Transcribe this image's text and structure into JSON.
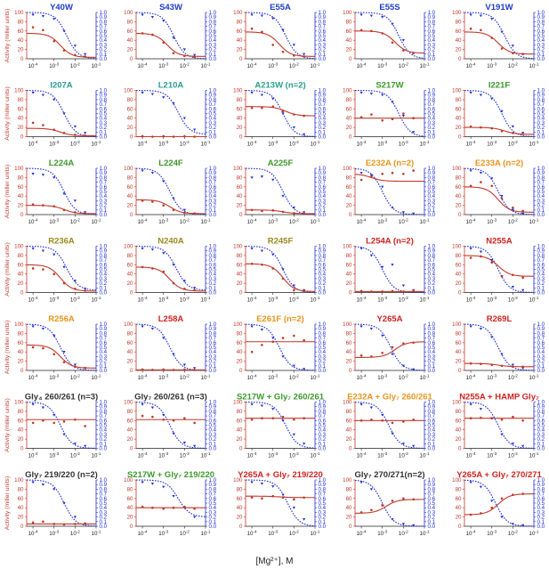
{
  "colors": {
    "activity": "#c0392b",
    "crosslink": "#1f2fd0",
    "title_blue": "#1f3cc8",
    "title_teal": "#2a9d8f",
    "title_green": "#3c9a2c",
    "title_olive": "#9a8a1e",
    "title_orange": "#e8951c",
    "title_red": "#d0231f",
    "title_dark": "#333333"
  },
  "x_axis_label": "[Mg²⁺], M",
  "left_axis_label": "Activity (miller units)",
  "right_axis_label": "F(crosslinking)",
  "left_ticks": [
    "0",
    "20",
    "40",
    "60",
    "80",
    "100"
  ],
  "right_ticks": [
    "0.0",
    "0.1",
    "0.2",
    "0.3",
    "0.4",
    "0.5",
    "0.6",
    "0.7",
    "0.8",
    "0.9",
    "1.0"
  ],
  "x_ticks": [
    {
      "base": "10",
      "exp": "-4"
    },
    {
      "base": "10",
      "exp": "-3"
    },
    {
      "base": "10",
      "exp": "-2"
    },
    {
      "base": "10",
      "exp": "-1"
    }
  ],
  "chart_data": {
    "type": "scatter",
    "x_scale": "log",
    "xlim": [
      5e-05,
      0.1
    ],
    "ylim_left": [
      0,
      100
    ],
    "ylim_right": [
      0,
      1
    ],
    "x_points": [
      0.0001,
      0.0003,
      0.001,
      0.003,
      0.01,
      0.03
    ],
    "panels": [
      {
        "title": "Y40W",
        "title_color": "title_blue",
        "activity_fit": {
          "top": 55,
          "bottom": 3,
          "ec50": 0.002
        },
        "crosslink_fit": {
          "top": 1,
          "bottom": 0,
          "ec50": 0.004
        },
        "activity": [
          68,
          62,
          38,
          18,
          8,
          5
        ],
        "crosslink": [
          0.95,
          0.92,
          0.86,
          0.6,
          0.28,
          0.1
        ]
      },
      {
        "title": "S43W",
        "title_color": "title_blue",
        "activity_fit": {
          "top": 55,
          "bottom": 5,
          "ec50": 0.0015
        },
        "crosslink_fit": {
          "top": 1,
          "bottom": 0,
          "ec50": 0.003
        },
        "activity": [
          55,
          52,
          35,
          12,
          6,
          4
        ],
        "crosslink": [
          0.95,
          0.9,
          0.82,
          0.45,
          0.2,
          0.08
        ]
      },
      {
        "title": "E55A",
        "title_color": "title_blue",
        "activity_fit": {
          "top": 58,
          "bottom": 5,
          "ec50": 0.002
        },
        "crosslink_fit": {
          "top": 1,
          "bottom": 0,
          "ec50": 0.004
        },
        "activity": [
          65,
          58,
          30,
          15,
          7,
          5
        ],
        "crosslink": [
          0.95,
          0.93,
          0.87,
          0.62,
          0.3,
          0.1
        ]
      },
      {
        "title": "E55S",
        "title_color": "title_blue",
        "activity_fit": {
          "top": 60,
          "bottom": 12,
          "ec50": 0.004
        },
        "crosslink_fit": {
          "top": 1,
          "bottom": 0,
          "ec50": 0.006
        },
        "activity": [
          62,
          60,
          55,
          35,
          18,
          12
        ],
        "crosslink": [
          0.95,
          0.93,
          0.9,
          0.75,
          0.4,
          0.12
        ]
      },
      {
        "title": "V191W",
        "title_color": "title_blue",
        "activity_fit": {
          "top": 58,
          "bottom": 10,
          "ec50": 0.002
        },
        "crosslink_fit": {
          "top": 1,
          "bottom": 0,
          "ec50": 0.004
        },
        "activity": [
          65,
          62,
          45,
          22,
          12,
          10
        ],
        "crosslink": [
          0.95,
          0.93,
          0.86,
          0.58,
          0.28,
          0.1
        ]
      },
      {
        "title": "I207A",
        "title_color": "title_teal",
        "activity_fit": {
          "top": 18,
          "bottom": 2,
          "ec50": 0.002
        },
        "crosslink_fit": {
          "top": 1,
          "bottom": 0,
          "ec50": 0.003
        },
        "activity": [
          30,
          25,
          15,
          8,
          4,
          2
        ],
        "crosslink": [
          0.95,
          0.9,
          0.8,
          0.5,
          0.22,
          0.08
        ]
      },
      {
        "title": "L210A",
        "title_color": "title_teal",
        "activity_fit": {
          "top": 0,
          "bottom": 0,
          "ec50": 0.002
        },
        "crosslink_fit": {
          "top": 1,
          "bottom": 0.05,
          "ec50": 0.005
        },
        "activity": [
          1,
          0,
          1,
          0,
          1,
          0
        ],
        "crosslink": [
          0.95,
          0.92,
          0.85,
          0.72,
          0.4,
          0.15
        ]
      },
      {
        "title": "A213W (n=2)",
        "title_color": "title_teal",
        "activity_fit": {
          "top": 65,
          "bottom": 45,
          "ec50": 0.004
        },
        "crosslink_fit": {
          "top": 1,
          "bottom": 0,
          "ec50": 0.003
        },
        "activity": [
          62,
          62,
          65,
          55,
          48,
          45
        ],
        "crosslink": [
          0.95,
          0.9,
          0.82,
          0.5,
          0.2,
          0.05
        ]
      },
      {
        "title": "S217W",
        "title_color": "title_green",
        "activity_fit": {
          "top": 40,
          "bottom": 40,
          "ec50": 0.002
        },
        "crosslink_fit": {
          "top": 1,
          "bottom": 0,
          "ec50": 0.006
        },
        "activity": [
          42,
          48,
          35,
          38,
          50,
          40
        ],
        "crosslink": [
          0.95,
          0.93,
          0.9,
          0.75,
          0.45,
          0.1
        ]
      },
      {
        "title": "I221F",
        "title_color": "title_green",
        "activity_fit": {
          "top": 20,
          "bottom": 5,
          "ec50": 0.004
        },
        "crosslink_fit": {
          "top": 1,
          "bottom": 0,
          "ec50": 0.003
        },
        "activity": [
          22,
          20,
          18,
          12,
          8,
          6
        ],
        "crosslink": [
          0.95,
          0.9,
          0.82,
          0.55,
          0.22,
          0.08
        ]
      },
      {
        "title": "L224A",
        "title_color": "title_green",
        "activity_fit": {
          "top": 20,
          "bottom": 2,
          "ec50": 0.003
        },
        "crosslink_fit": {
          "top": 1,
          "bottom": 0,
          "ec50": 0.003
        },
        "activity": [
          22,
          20,
          18,
          10,
          5,
          2
        ],
        "crosslink": [
          0.88,
          0.86,
          0.8,
          0.45,
          0.3,
          0.05
        ]
      },
      {
        "title": "L224F",
        "title_color": "title_green",
        "activity_fit": {
          "top": 32,
          "bottom": 2,
          "ec50": 0.002
        },
        "crosslink_fit": {
          "top": 1,
          "bottom": 0,
          "ec50": 0.002
        },
        "activity": [
          30,
          28,
          20,
          10,
          4,
          2
        ],
        "crosslink": [
          0.95,
          0.9,
          0.72,
          0.35,
          0.1,
          0.02
        ]
      },
      {
        "title": "A225F",
        "title_color": "title_green",
        "activity_fit": {
          "top": 10,
          "bottom": 2,
          "ec50": 0.003
        },
        "crosslink_fit": {
          "top": 1,
          "bottom": 0,
          "ec50": 0.003
        },
        "activity": [
          10,
          8,
          9,
          6,
          3,
          2
        ],
        "crosslink": [
          0.8,
          0.82,
          0.75,
          0.4,
          0.15,
          0.05
        ]
      },
      {
        "title": "E232A (n=2)",
        "title_color": "title_orange",
        "activity_fit": {
          "top": 88,
          "bottom": 72,
          "ec50": 0.0003
        },
        "crosslink_fit": {
          "top": 1,
          "bottom": 0,
          "ec50": 0.001
        },
        "activity": [
          75,
          82,
          88,
          90,
          88,
          95
        ],
        "crosslink": [
          0.9,
          0.85,
          0.6,
          0.15,
          0.05,
          0.02
        ]
      },
      {
        "title": "E233A (n=2)",
        "title_color": "title_orange",
        "activity_fit": {
          "top": 60,
          "bottom": 5,
          "ec50": 0.002
        },
        "crosslink_fit": {
          "top": 1,
          "bottom": 0,
          "ec50": 0.002
        },
        "activity": [
          62,
          70,
          62,
          35,
          15,
          8
        ],
        "crosslink": [
          0.95,
          0.9,
          0.78,
          0.4,
          0.1,
          0.02
        ]
      },
      {
        "title": "R236A",
        "title_color": "title_olive",
        "activity_fit": {
          "top": 60,
          "bottom": 3,
          "ec50": 0.002
        },
        "crosslink_fit": {
          "top": 1,
          "bottom": 0.05,
          "ec50": 0.004
        },
        "activity": [
          52,
          50,
          40,
          20,
          8,
          4
        ],
        "crosslink": [
          0.95,
          0.9,
          0.82,
          0.55,
          0.25,
          0.08
        ]
      },
      {
        "title": "N240A",
        "title_color": "title_olive",
        "activity_fit": {
          "top": 55,
          "bottom": 3,
          "ec50": 0.002
        },
        "crosslink_fit": {
          "top": 1,
          "bottom": 0.05,
          "ec50": 0.004
        },
        "activity": [
          55,
          52,
          45,
          20,
          8,
          5
        ],
        "crosslink": [
          0.95,
          0.93,
          0.85,
          0.6,
          0.25,
          0.1
        ]
      },
      {
        "title": "R245F",
        "title_color": "title_olive",
        "activity_fit": {
          "top": 62,
          "bottom": 2,
          "ec50": 0.003
        },
        "crosslink_fit": {
          "top": 1,
          "bottom": 0,
          "ec50": 0.003
        },
        "activity": [
          62,
          60,
          52,
          30,
          5,
          3
        ],
        "crosslink": [
          0.95,
          0.9,
          0.82,
          0.5,
          0.15,
          0.05
        ]
      },
      {
        "title": "L254A (n=2)",
        "title_color": "title_red",
        "activity_fit": {
          "top": 2,
          "bottom": 2,
          "ec50": 0.002
        },
        "crosslink_fit": {
          "top": 1,
          "bottom": 0,
          "ec50": 0.001
        },
        "activity": [
          3,
          2,
          2,
          3,
          2,
          4
        ],
        "crosslink": [
          0.95,
          0.8,
          0.55,
          0.6,
          0.15,
          0.05
        ]
      },
      {
        "title": "N255A",
        "title_color": "title_red",
        "activity_fit": {
          "top": 80,
          "bottom": 35,
          "ec50": 0.002
        },
        "crosslink_fit": {
          "top": 1,
          "bottom": 0,
          "ec50": 0.002
        },
        "activity": [
          75,
          78,
          65,
          35,
          38,
          32
        ],
        "crosslink": [
          0.95,
          0.88,
          0.7,
          0.35,
          0.12,
          0.05
        ]
      },
      {
        "title": "R256A",
        "title_color": "title_orange",
        "activity_fit": {
          "top": 55,
          "bottom": 5,
          "ec50": 0.002
        },
        "crosslink_fit": {
          "top": 1,
          "bottom": 0,
          "ec50": 0.002
        },
        "activity": [
          50,
          48,
          35,
          18,
          8,
          5
        ],
        "crosslink": [
          0.95,
          0.9,
          0.75,
          0.4,
          0.12,
          0.05
        ]
      },
      {
        "title": "L258A",
        "title_color": "title_red",
        "activity_fit": {
          "top": 1,
          "bottom": 1,
          "ec50": 0.002
        },
        "crosslink_fit": {
          "top": 1,
          "bottom": 0,
          "ec50": 0.002
        },
        "activity": [
          2,
          1,
          2,
          1,
          2,
          1
        ],
        "crosslink": [
          0.95,
          0.9,
          0.7,
          0.35,
          0.12,
          0.05
        ]
      },
      {
        "title": "E261F (n=2)",
        "title_color": "title_orange",
        "activity_fit": {
          "top": 62,
          "bottom": 62,
          "ec50": 0.002
        },
        "crosslink_fit": {
          "top": 1,
          "bottom": 0,
          "ec50": 0.002
        },
        "activity": [
          40,
          55,
          62,
          70,
          75,
          65
        ],
        "crosslink": [
          0.95,
          0.88,
          0.7,
          0.3,
          0.1,
          0.03
        ]
      },
      {
        "title": "Y265A",
        "title_color": "title_red",
        "activity_fit": {
          "top": 28,
          "bottom": 62,
          "ec50": 0.004
        },
        "crosslink_fit": {
          "top": 1,
          "bottom": 0,
          "ec50": 0.0025
        },
        "activity": [
          32,
          30,
          38,
          50,
          58,
          60
        ],
        "crosslink": [
          0.95,
          0.9,
          0.75,
          0.35,
          0.1,
          0.02
        ]
      },
      {
        "title": "R269L",
        "title_color": "title_red",
        "activity_fit": {
          "top": 15,
          "bottom": 8,
          "ec50": 0.002
        },
        "crosslink_fit": {
          "top": 1,
          "bottom": 0,
          "ec50": 0.002
        },
        "activity": [
          15,
          14,
          12,
          10,
          8,
          8
        ],
        "crosslink": [
          0.95,
          0.9,
          0.72,
          0.35,
          0.12,
          0.05
        ]
      },
      {
        "title": "Gly₄ 260/261 (n=3)",
        "title_color": "title_dark",
        "activity_fit": {
          "top": 62,
          "bottom": 62,
          "ec50": 0.002
        },
        "crosslink_fit": {
          "top": 1,
          "bottom": 0,
          "ec50": 0.002
        },
        "activity": [
          55,
          60,
          55,
          58,
          62,
          48
        ],
        "crosslink": [
          0.95,
          0.88,
          0.72,
          0.3,
          0.1,
          0.05
        ]
      },
      {
        "title": "Gly₇ 260/261 (n=3)",
        "title_color": "title_dark",
        "activity_fit": {
          "top": 62,
          "bottom": 62,
          "ec50": 0.002
        },
        "crosslink_fit": {
          "top": 1,
          "bottom": 0,
          "ec50": 0.002
        },
        "activity": [
          70,
          68,
          62,
          60,
          65,
          55
        ],
        "crosslink": [
          0.95,
          0.88,
          0.72,
          0.32,
          0.12,
          0.05
        ]
      },
      {
        "title": "S217W + Gly₇ 260/261",
        "title_color": "title_green",
        "activity_fit": {
          "top": 65,
          "bottom": 65,
          "ec50": 0.002
        },
        "crosslink_fit": {
          "top": 1,
          "bottom": 0,
          "ec50": 0.004
        },
        "activity": [
          62,
          65,
          65,
          68,
          62,
          65
        ],
        "crosslink": [
          0.95,
          0.92,
          0.85,
          0.6,
          0.3,
          0.1
        ]
      },
      {
        "title": "E232A + Gly₇ 260/261",
        "title_color": "title_orange",
        "activity_fit": {
          "top": 60,
          "bottom": 60,
          "ec50": 0.002
        },
        "crosslink_fit": {
          "top": 1,
          "bottom": 0,
          "ec50": 0.002
        },
        "activity": [
          60,
          62,
          60,
          55,
          58,
          62
        ],
        "crosslink": [
          0.95,
          0.88,
          0.72,
          0.32,
          0.1,
          0.05
        ]
      },
      {
        "title": "N255A + HAMP Gly₇",
        "title_color": "title_red",
        "activity_fit": {
          "top": 65,
          "bottom": 65,
          "ec50": 0.002
        },
        "crosslink_fit": {
          "top": 1,
          "bottom": 0,
          "ec50": 0.002
        },
        "activity": [
          65,
          66,
          65,
          62,
          68,
          60
        ],
        "crosslink": [
          0.95,
          0.85,
          0.65,
          0.3,
          0.1,
          0.05
        ]
      },
      {
        "title": "Gly₇ 219/220 (n=2)",
        "title_color": "title_dark",
        "activity_fit": {
          "top": 5,
          "bottom": 5,
          "ec50": 0.002
        },
        "crosslink_fit": {
          "top": 1,
          "bottom": 0,
          "ec50": 0.003
        },
        "activity": [
          8,
          10,
          5,
          4,
          5,
          6
        ],
        "crosslink": [
          0.95,
          0.9,
          0.8,
          0.5,
          0.2,
          0.05
        ]
      },
      {
        "title": "S217W + Gly₇ 219/220",
        "title_color": "title_green",
        "activity_fit": {
          "top": 40,
          "bottom": 40,
          "ec50": 0.002
        },
        "crosslink_fit": {
          "top": 1,
          "bottom": 0.2,
          "ec50": 0.005
        },
        "activity": [
          42,
          40,
          38,
          40,
          42,
          38
        ],
        "crosslink": [
          0.95,
          0.92,
          0.85,
          0.65,
          0.4,
          0.2
        ]
      },
      {
        "title": "Y265A + Gly₇ 219/220",
        "title_color": "title_red",
        "activity_fit": {
          "top": 65,
          "bottom": 62,
          "ec50": 0.002
        },
        "crosslink_fit": {
          "top": 1,
          "bottom": 0,
          "ec50": 0.005
        },
        "activity": [
          62,
          60,
          65,
          62,
          58,
          62
        ],
        "crosslink": [
          0.95,
          0.92,
          0.86,
          0.68,
          0.4,
          0.15
        ]
      },
      {
        "title": "Gly₇ 270/271(n=2)",
        "title_color": "title_dark",
        "activity_fit": {
          "top": 28,
          "bottom": 58,
          "ec50": 0.0015
        },
        "crosslink_fit": {
          "top": 1,
          "bottom": 0,
          "ec50": 0.001
        },
        "activity": [
          30,
          35,
          45,
          55,
          60,
          58
        ],
        "crosslink": [
          0.95,
          0.8,
          0.45,
          0.15,
          0.05,
          0.02
        ]
      },
      {
        "title": "Y265A + Gly₇ 270/271",
        "title_color": "title_red",
        "activity_fit": {
          "top": 25,
          "bottom": 70,
          "ec50": 0.002
        },
        "crosslink_fit": {
          "top": 1,
          "bottom": 0,
          "ec50": 0.0015
        },
        "activity": [
          25,
          28,
          40,
          60,
          68,
          70
        ],
        "crosslink": [
          0.95,
          0.85,
          0.55,
          0.2,
          0.05,
          0.02
        ]
      }
    ]
  }
}
